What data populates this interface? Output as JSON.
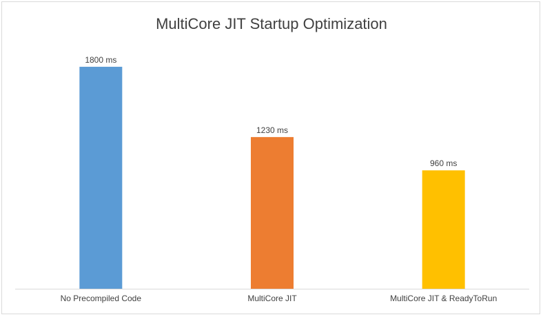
{
  "chart_data": {
    "type": "bar",
    "title": "MultiCore JIT Startup Optimization",
    "categories": [
      "No Precompiled Code",
      "MultiCore JIT",
      "MultiCore JIT & ReadyToRun"
    ],
    "values": [
      1800,
      1230,
      960
    ],
    "data_labels": [
      "1800 ms",
      "1230 ms",
      "960 ms"
    ],
    "unit": "ms",
    "colors": [
      "#5b9bd5",
      "#ed7d31",
      "#ffc000"
    ],
    "xlabel": "",
    "ylabel": "",
    "ylim": [
      0,
      1900
    ],
    "grid": false,
    "legend": "none"
  }
}
